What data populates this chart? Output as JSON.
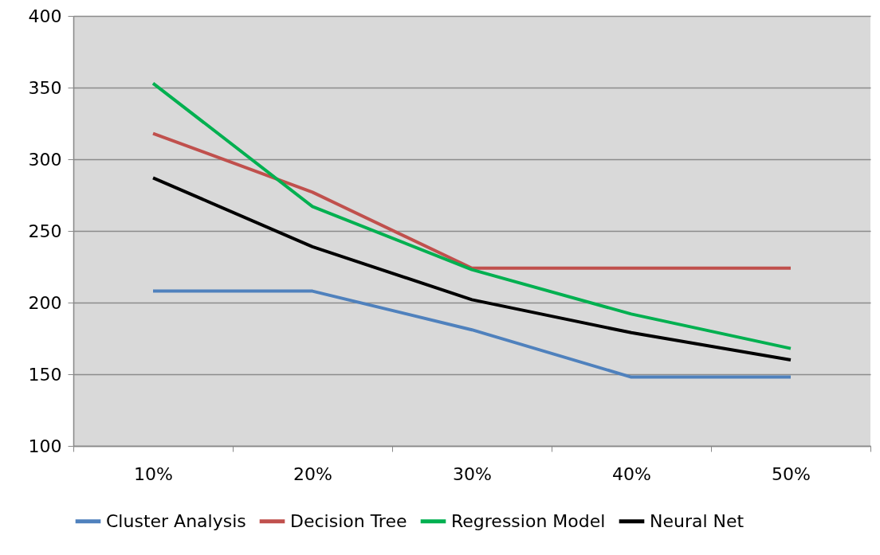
{
  "chart_data": {
    "type": "line",
    "categories": [
      "10%",
      "20%",
      "30%",
      "40%",
      "50%"
    ],
    "series": [
      {
        "name": "Cluster Analysis",
        "color": "#4f81bd",
        "values": [
          208,
          208,
          181,
          148,
          148
        ]
      },
      {
        "name": "Decision Tree",
        "color": "#c0504d",
        "values": [
          318,
          277,
          224,
          224,
          224
        ]
      },
      {
        "name": "Regression Model",
        "color": "#00b050",
        "values": [
          353,
          267,
          223,
          192,
          168
        ]
      },
      {
        "name": "Neural Net",
        "color": "#000000",
        "values": [
          287,
          239,
          202,
          179,
          160
        ]
      }
    ],
    "ylim": [
      100,
      400
    ],
    "yticks": [
      100,
      150,
      200,
      250,
      300,
      350,
      400
    ],
    "grid": "y",
    "legend": "bottom",
    "marker": "none",
    "line_style": "solid"
  }
}
